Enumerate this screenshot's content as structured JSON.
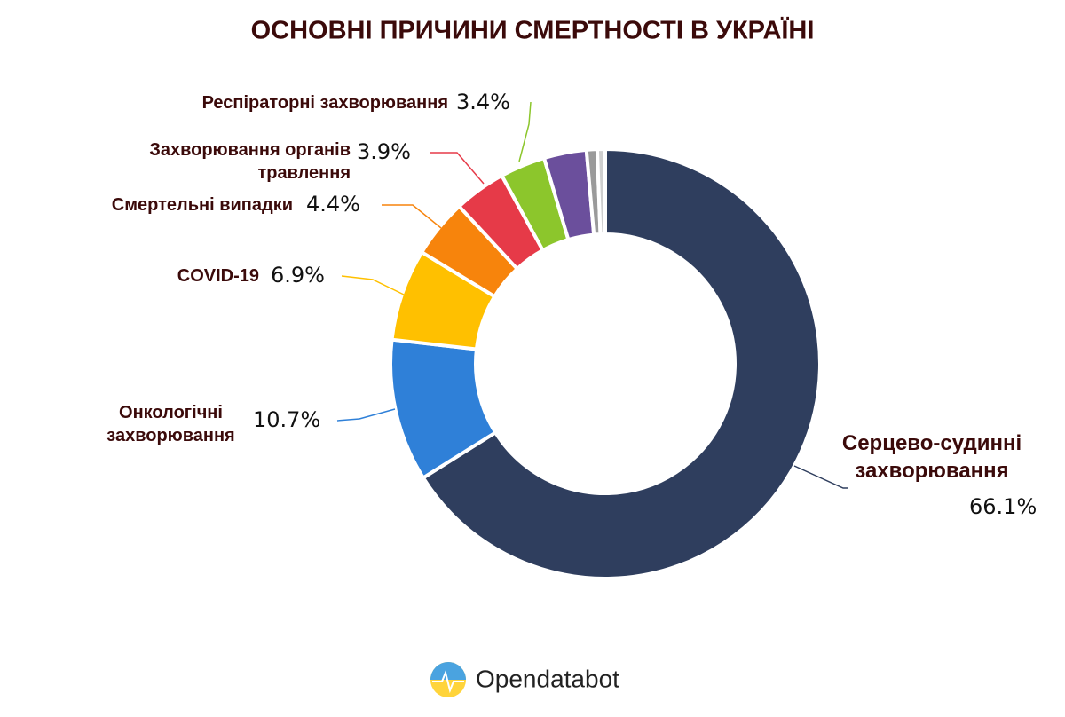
{
  "chart_data": {
    "type": "donut",
    "title": "ОСНОВНІ ПРИЧИНИ СМЕРТНОСТІ В УКРАЇНІ",
    "categories": [
      "Серцево-судинні\nзахворювання",
      "Онкологічні\nзахворювання",
      "COVID-19",
      "Смертельні випадки",
      "Захворювання органів\nтравлення",
      "Респіраторні захворювання",
      null,
      null,
      null
    ],
    "values": [
      66.1,
      10.7,
      6.9,
      4.4,
      3.9,
      3.4,
      3.2,
      0.8,
      0.6
    ],
    "value_labels": [
      "66.1%",
      "10.7%",
      "6.9%",
      "4.4%",
      "3.9%",
      "3.4%",
      null,
      null,
      null
    ],
    "colors": [
      "#2f3e5e",
      "#2f80d8",
      "#ffc000",
      "#f7840c",
      "#e63a48",
      "#8cc62c",
      "#6b4f9c",
      "#9a9a9a",
      "#cfcfcf"
    ]
  },
  "footer": "Opendatabot"
}
